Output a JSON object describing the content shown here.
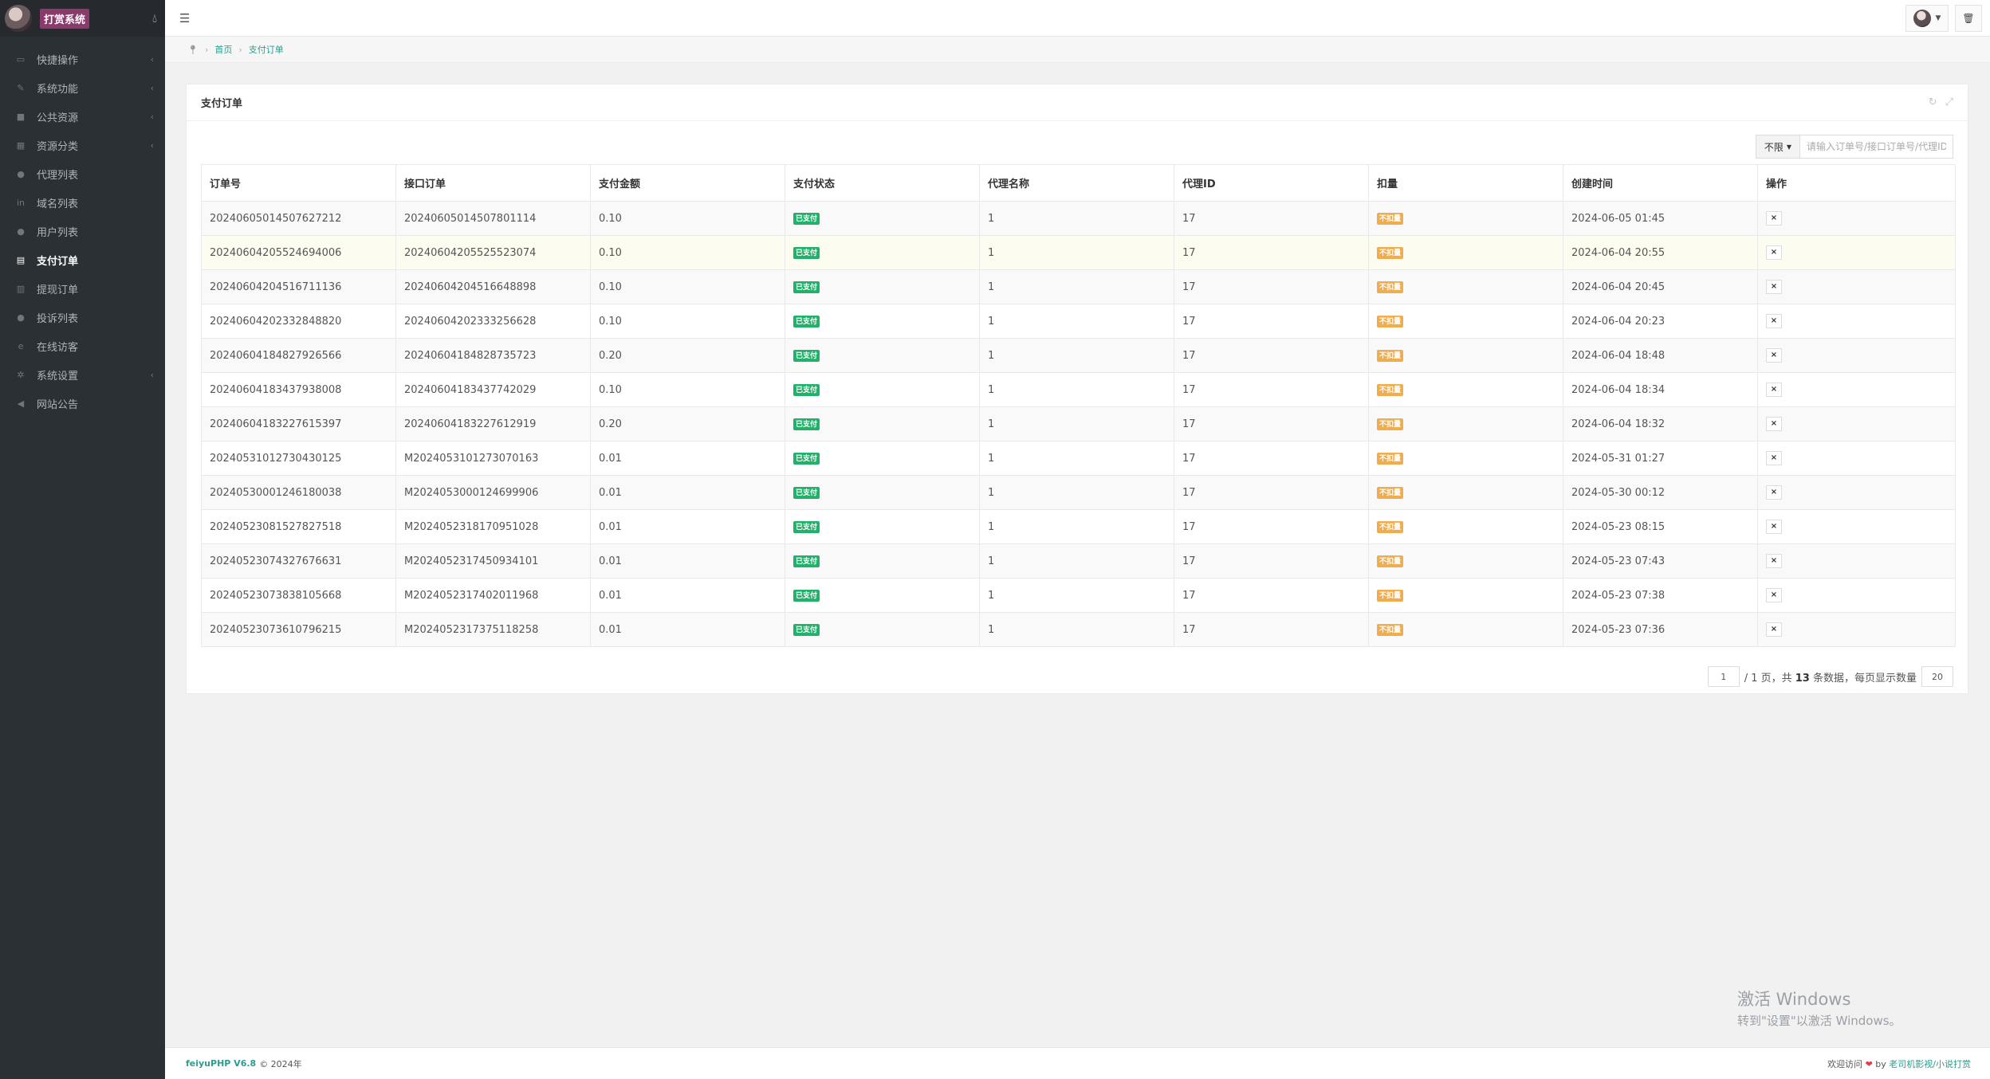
{
  "brand": {
    "title": "打赏系统"
  },
  "sidebar": {
    "items": [
      {
        "label": "快捷操作",
        "icon": "briefcase-icon",
        "glyph": "▭",
        "has_sub": true,
        "active": false
      },
      {
        "label": "系统功能",
        "icon": "wrench-icon",
        "glyph": "✎",
        "has_sub": true,
        "active": false
      },
      {
        "label": "公共资源",
        "icon": "video-icon",
        "glyph": "■",
        "has_sub": true,
        "active": false
      },
      {
        "label": "资源分类",
        "icon": "grid-icon",
        "glyph": "▦",
        "has_sub": true,
        "active": false
      },
      {
        "label": "代理列表",
        "icon": "users-icon",
        "glyph": "●",
        "has_sub": false,
        "active": false
      },
      {
        "label": "域名列表",
        "icon": "linkedin-icon",
        "glyph": "in",
        "has_sub": false,
        "active": false
      },
      {
        "label": "用户列表",
        "icon": "user-icon",
        "glyph": "●",
        "has_sub": false,
        "active": false
      },
      {
        "label": "支付订单",
        "icon": "database-icon",
        "glyph": "▤",
        "has_sub": false,
        "active": true
      },
      {
        "label": "提现订单",
        "icon": "bank-icon",
        "glyph": "▥",
        "has_sub": false,
        "active": false
      },
      {
        "label": "投诉列表",
        "icon": "info-icon",
        "glyph": "●",
        "has_sub": false,
        "active": false
      },
      {
        "label": "在线访客",
        "icon": "ie-icon",
        "glyph": "e",
        "has_sub": false,
        "active": false
      },
      {
        "label": "系统设置",
        "icon": "cog-icon",
        "glyph": "✲",
        "has_sub": true,
        "active": false
      },
      {
        "label": "网站公告",
        "icon": "bullhorn-icon",
        "glyph": "◀",
        "has_sub": false,
        "active": false
      }
    ]
  },
  "breadcrumb": {
    "home": "首页",
    "current": "支付订单"
  },
  "panel": {
    "title": "支付订单"
  },
  "search": {
    "filter_label": "不限",
    "placeholder": "请输入订单号/接口订单号/代理ID"
  },
  "table": {
    "columns": [
      "订单号",
      "接口订单",
      "支付金额",
      "支付状态",
      "代理名称",
      "代理ID",
      "扣量",
      "创建时间",
      "操作"
    ],
    "rows": [
      [
        "20240605014507627212",
        "20240605014507801114",
        "0.10",
        "已支付",
        "1",
        "17",
        "不扣量",
        "2024-06-05 01:45"
      ],
      [
        "20240604205524694006",
        "20240604205525523074",
        "0.10",
        "已支付",
        "1",
        "17",
        "不扣量",
        "2024-06-04 20:55"
      ],
      [
        "20240604204516711136",
        "20240604204516648898",
        "0.10",
        "已支付",
        "1",
        "17",
        "不扣量",
        "2024-06-04 20:45"
      ],
      [
        "20240604202332848820",
        "20240604202333256628",
        "0.10",
        "已支付",
        "1",
        "17",
        "不扣量",
        "2024-06-04 20:23"
      ],
      [
        "20240604184827926566",
        "20240604184828735723",
        "0.20",
        "已支付",
        "1",
        "17",
        "不扣量",
        "2024-06-04 18:48"
      ],
      [
        "20240604183437938008",
        "20240604183437742029",
        "0.10",
        "已支付",
        "1",
        "17",
        "不扣量",
        "2024-06-04 18:34"
      ],
      [
        "20240604183227615397",
        "20240604183227612919",
        "0.20",
        "已支付",
        "1",
        "17",
        "不扣量",
        "2024-06-04 18:32"
      ],
      [
        "20240531012730430125",
        "M2024053101273070163",
        "0.01",
        "已支付",
        "1",
        "17",
        "不扣量",
        "2024-05-31 01:27"
      ],
      [
        "20240530001246180038",
        "M2024053000124699906",
        "0.01",
        "已支付",
        "1",
        "17",
        "不扣量",
        "2024-05-30 00:12"
      ],
      [
        "20240523081527827518",
        "M2024052318170951028",
        "0.01",
        "已支付",
        "1",
        "17",
        "不扣量",
        "2024-05-23 08:15"
      ],
      [
        "20240523074327676631",
        "M2024052317450934101",
        "0.01",
        "已支付",
        "1",
        "17",
        "不扣量",
        "2024-05-23 07:43"
      ],
      [
        "20240523073838105668",
        "M2024052317402011968",
        "0.01",
        "已支付",
        "1",
        "17",
        "不扣量",
        "2024-05-23 07:38"
      ],
      [
        "20240523073610796215",
        "M2024052317375118258",
        "0.01",
        "已支付",
        "1",
        "17",
        "不扣量",
        "2024-05-23 07:36"
      ]
    ],
    "delete_label": "×"
  },
  "pagination": {
    "page_value": "1",
    "total_pages_text": "/ 1 页，共 ",
    "total": "13",
    "total_suffix": " 条数据，每页显示数量",
    "per_page": "20"
  },
  "watermark": {
    "line1": "激活 Windows",
    "line2": "转到\"设置\"以激活 Windows。"
  },
  "footer": {
    "brand": "feiyuPHP V6.8",
    "copyright": "© 2024年",
    "welcome": "欢迎访问",
    "by": "by",
    "link": "老司机影视/小说打赏"
  },
  "colors": {
    "accent": "#2d9c8f",
    "paid": "#23b06b",
    "deduct": "#f0ad4e",
    "sidebar": "#2b3035",
    "highlight_row": "#fdfcf1"
  }
}
